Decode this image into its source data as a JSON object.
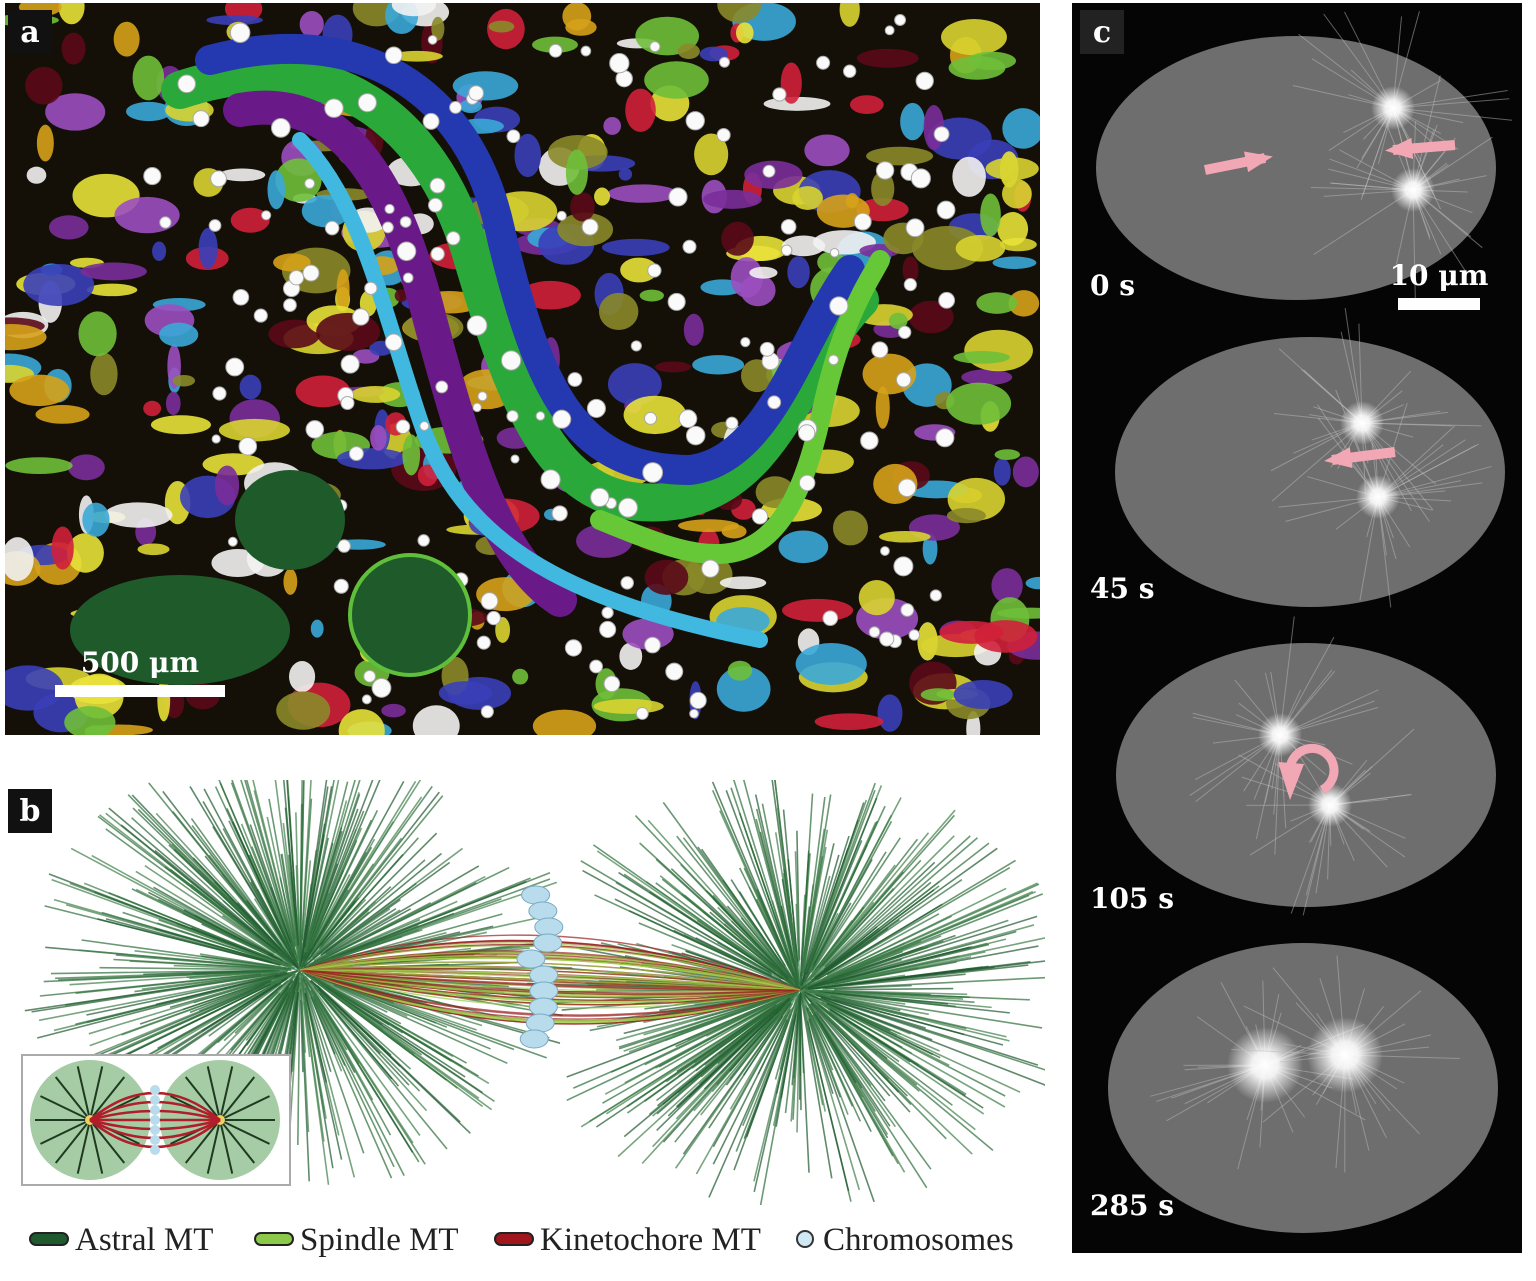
{
  "panels": [
    {
      "label": "a",
      "scale_bar": "500 μm"
    },
    {
      "label": "b",
      "legend": [
        "Astral MT",
        "Spindle MT",
        "Kinetochore MT",
        "Chromosomes"
      ]
    },
    {
      "label": "c",
      "scale_bar": "10 μm",
      "frames": [
        "0 s",
        "45 s",
        "105 s",
        "285 s"
      ]
    }
  ]
}
